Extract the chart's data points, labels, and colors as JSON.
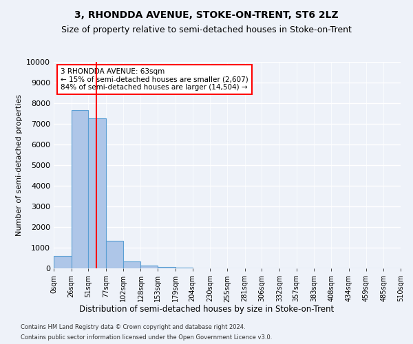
{
  "title": "3, RHONDDA AVENUE, STOKE-ON-TRENT, ST6 2LZ",
  "subtitle": "Size of property relative to semi-detached houses in Stoke-on-Trent",
  "xlabel": "Distribution of semi-detached houses by size in Stoke-on-Trent",
  "ylabel": "Number of semi-detached properties",
  "footer1": "Contains HM Land Registry data © Crown copyright and database right 2024.",
  "footer2": "Contains public sector information licensed under the Open Government Licence v3.0.",
  "bin_labels": [
    "0sqm",
    "26sqm",
    "51sqm",
    "77sqm",
    "102sqm",
    "128sqm",
    "153sqm",
    "179sqm",
    "204sqm",
    "230sqm",
    "255sqm",
    "281sqm",
    "306sqm",
    "332sqm",
    "357sqm",
    "383sqm",
    "408sqm",
    "434sqm",
    "459sqm",
    "485sqm",
    "510sqm"
  ],
  "bin_edges": [
    0,
    26,
    51,
    77,
    102,
    128,
    153,
    179,
    204,
    230,
    255,
    281,
    306,
    332,
    357,
    383,
    408,
    434,
    459,
    485,
    510
  ],
  "bar_heights": [
    600,
    7650,
    7250,
    1350,
    330,
    150,
    80,
    40,
    0,
    0,
    0,
    0,
    0,
    0,
    0,
    0,
    0,
    0,
    0,
    0
  ],
  "bar_color": "#aec6e8",
  "bar_edge_color": "#5a9fd4",
  "property_size": 63,
  "property_line_color": "red",
  "annotation_text": "3 RHONDDA AVENUE: 63sqm\n← 15% of semi-detached houses are smaller (2,607)\n84% of semi-detached houses are larger (14,504) →",
  "annotation_box_color": "white",
  "annotation_box_edge_color": "red",
  "ylim": [
    0,
    10000
  ],
  "yticks": [
    0,
    1000,
    2000,
    3000,
    4000,
    5000,
    6000,
    7000,
    8000,
    9000,
    10000
  ],
  "background_color": "#eef2f9",
  "grid_color": "white",
  "title_fontsize": 10,
  "subtitle_fontsize": 9,
  "xlabel_fontsize": 8.5,
  "ylabel_fontsize": 8
}
